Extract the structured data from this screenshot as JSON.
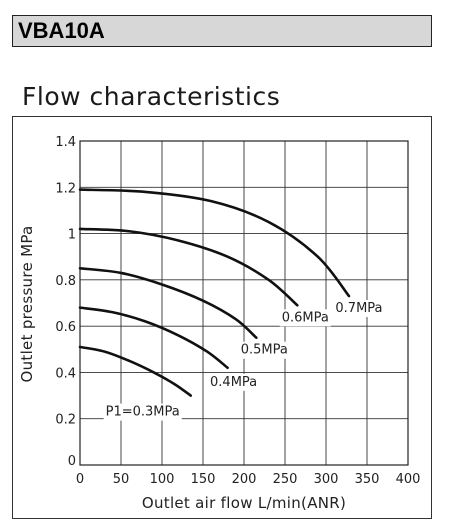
{
  "header": {
    "model": "VBA10A"
  },
  "chart_data": {
    "type": "line",
    "title": "Flow characteristics",
    "xlabel": "Outlet air flow L/min(ANR)",
    "ylabel": "Outlet pressure MPa",
    "xlim": [
      0,
      400
    ],
    "ylim": [
      0,
      1.4
    ],
    "x_ticks": [
      "0",
      "50",
      "100",
      "150",
      "200",
      "250",
      "300",
      "350",
      "400"
    ],
    "y_ticks": [
      "0",
      "0.2",
      "0.4",
      "0.6",
      "0.8",
      "1",
      "1.2",
      "1.4"
    ],
    "grid": true,
    "series": [
      {
        "name": "P1=0.3MPa",
        "x": [
          0,
          30,
          60,
          90,
          115,
          135
        ],
        "y": [
          0.51,
          0.49,
          0.45,
          0.4,
          0.35,
          0.3
        ]
      },
      {
        "name": "0.4MPa",
        "x": [
          0,
          40,
          80,
          120,
          155,
          180
        ],
        "y": [
          0.68,
          0.66,
          0.62,
          0.56,
          0.49,
          0.42
        ]
      },
      {
        "name": "0.5MPa",
        "x": [
          0,
          50,
          100,
          150,
          190,
          215
        ],
        "y": [
          0.85,
          0.83,
          0.78,
          0.71,
          0.63,
          0.55
        ]
      },
      {
        "name": "0.6MPa",
        "x": [
          0,
          60,
          120,
          180,
          230,
          265
        ],
        "y": [
          1.02,
          1.01,
          0.97,
          0.9,
          0.8,
          0.69
        ]
      },
      {
        "name": "0.7MPa",
        "x": [
          0,
          80,
          160,
          230,
          290,
          328
        ],
        "y": [
          1.19,
          1.18,
          1.14,
          1.05,
          0.9,
          0.73
        ]
      }
    ]
  }
}
